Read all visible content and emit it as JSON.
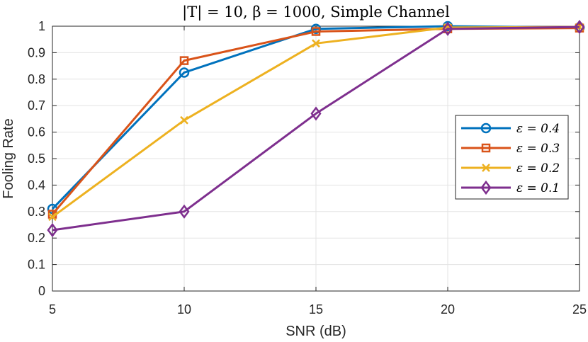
{
  "chart_data": {
    "type": "line",
    "title": "|T| = 10, β = 1000, Simple Channel",
    "xlabel": "SNR (dB)",
    "ylabel": "Fooling Rate",
    "x": [
      5,
      10,
      15,
      20,
      25
    ],
    "xlim": [
      5,
      25
    ],
    "ylim": [
      0,
      1
    ],
    "xticks": [
      "5",
      "10",
      "15",
      "20",
      "25"
    ],
    "yticks": [
      "0",
      "0.1",
      "0.2",
      "0.3",
      "0.4",
      "0.5",
      "0.6",
      "0.7",
      "0.8",
      "0.9",
      "1"
    ],
    "grid": true,
    "legend_position": "center-right",
    "series": [
      {
        "name": "ε = 0.4",
        "values": [
          0.31,
          0.825,
          0.99,
          1.0,
          0.995
        ],
        "color": "#0072BD",
        "marker": "circle"
      },
      {
        "name": "ε = 0.3",
        "values": [
          0.29,
          0.87,
          0.98,
          0.99,
          0.993
        ],
        "color": "#D95319",
        "marker": "square"
      },
      {
        "name": "ε = 0.2",
        "values": [
          0.28,
          0.645,
          0.935,
          0.995,
          0.997
        ],
        "color": "#EDB120",
        "marker": "x"
      },
      {
        "name": "ε = 0.1",
        "values": [
          0.23,
          0.3,
          0.67,
          0.99,
          0.997
        ],
        "color": "#7E2F8E",
        "marker": "diamond"
      }
    ]
  }
}
